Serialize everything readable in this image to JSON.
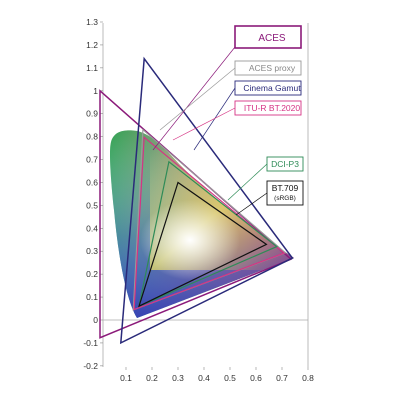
{
  "chart_data": {
    "type": "line",
    "title": "",
    "xlabel": "",
    "ylabel": "",
    "xlim": [
      0.0,
      0.8
    ],
    "ylim": [
      -0.2,
      1.3
    ],
    "x_ticks": [
      "0.1",
      "0.2",
      "0.3",
      "0.4",
      "0.5",
      "0.6",
      "0.7",
      "0.8"
    ],
    "y_ticks": [
      "1.3",
      "1.2",
      "1.1",
      "1",
      "0.9",
      "0.8",
      "0.7",
      "0.6",
      "0.5",
      "0.4",
      "0.3",
      "0.2",
      "0.1",
      "0",
      "-0.1",
      "-0.2"
    ],
    "grid": false,
    "legend_position": "right, stacked labels with leader lines",
    "series": [
      {
        "name": "ACES",
        "color": "#8b1a7a",
        "x": [
          0.7347,
          0.0,
          0.0001
        ],
        "y": [
          0.2653,
          1.0,
          -0.077
        ],
        "closed": true
      },
      {
        "name": "ACES proxy",
        "color": "#9a9a9a",
        "x": [
          0.713,
          0.165,
          0.128
        ],
        "y": [
          0.293,
          0.83,
          0.044
        ],
        "closed": true
      },
      {
        "name": "Cinema Gamut",
        "color": "#2a2a7a",
        "x": [
          0.74,
          0.17,
          0.08
        ],
        "y": [
          0.27,
          1.14,
          -0.1
        ],
        "closed": true
      },
      {
        "name": "ITU-R BT.2020",
        "color": "#d63384",
        "x": [
          0.708,
          0.17,
          0.131
        ],
        "y": [
          0.292,
          0.797,
          0.046
        ],
        "closed": true
      },
      {
        "name": "DCI-P3",
        "color": "#2e8b57",
        "x": [
          0.68,
          0.265,
          0.15
        ],
        "y": [
          0.32,
          0.69,
          0.06
        ],
        "closed": true
      },
      {
        "name": "BT.709",
        "color": "#111111",
        "x": [
          0.64,
          0.3,
          0.15
        ],
        "y": [
          0.33,
          0.6,
          0.06
        ],
        "closed": true
      }
    ],
    "legend": [
      {
        "label": "ACES",
        "sub": "",
        "color": "#8b1a7a"
      },
      {
        "label": "ACES proxy",
        "sub": "",
        "color": "#9a9a9a"
      },
      {
        "label": "Cinema Gamut",
        "sub": "",
        "color": "#2a2a7a"
      },
      {
        "label": "ITU-R BT.2020",
        "sub": "",
        "color": "#d63384"
      },
      {
        "label": "DCI-P3",
        "sub": "",
        "color": "#2e8b57"
      },
      {
        "label": "BT.709",
        "sub": "(sRGB)",
        "color": "#111111"
      }
    ]
  }
}
